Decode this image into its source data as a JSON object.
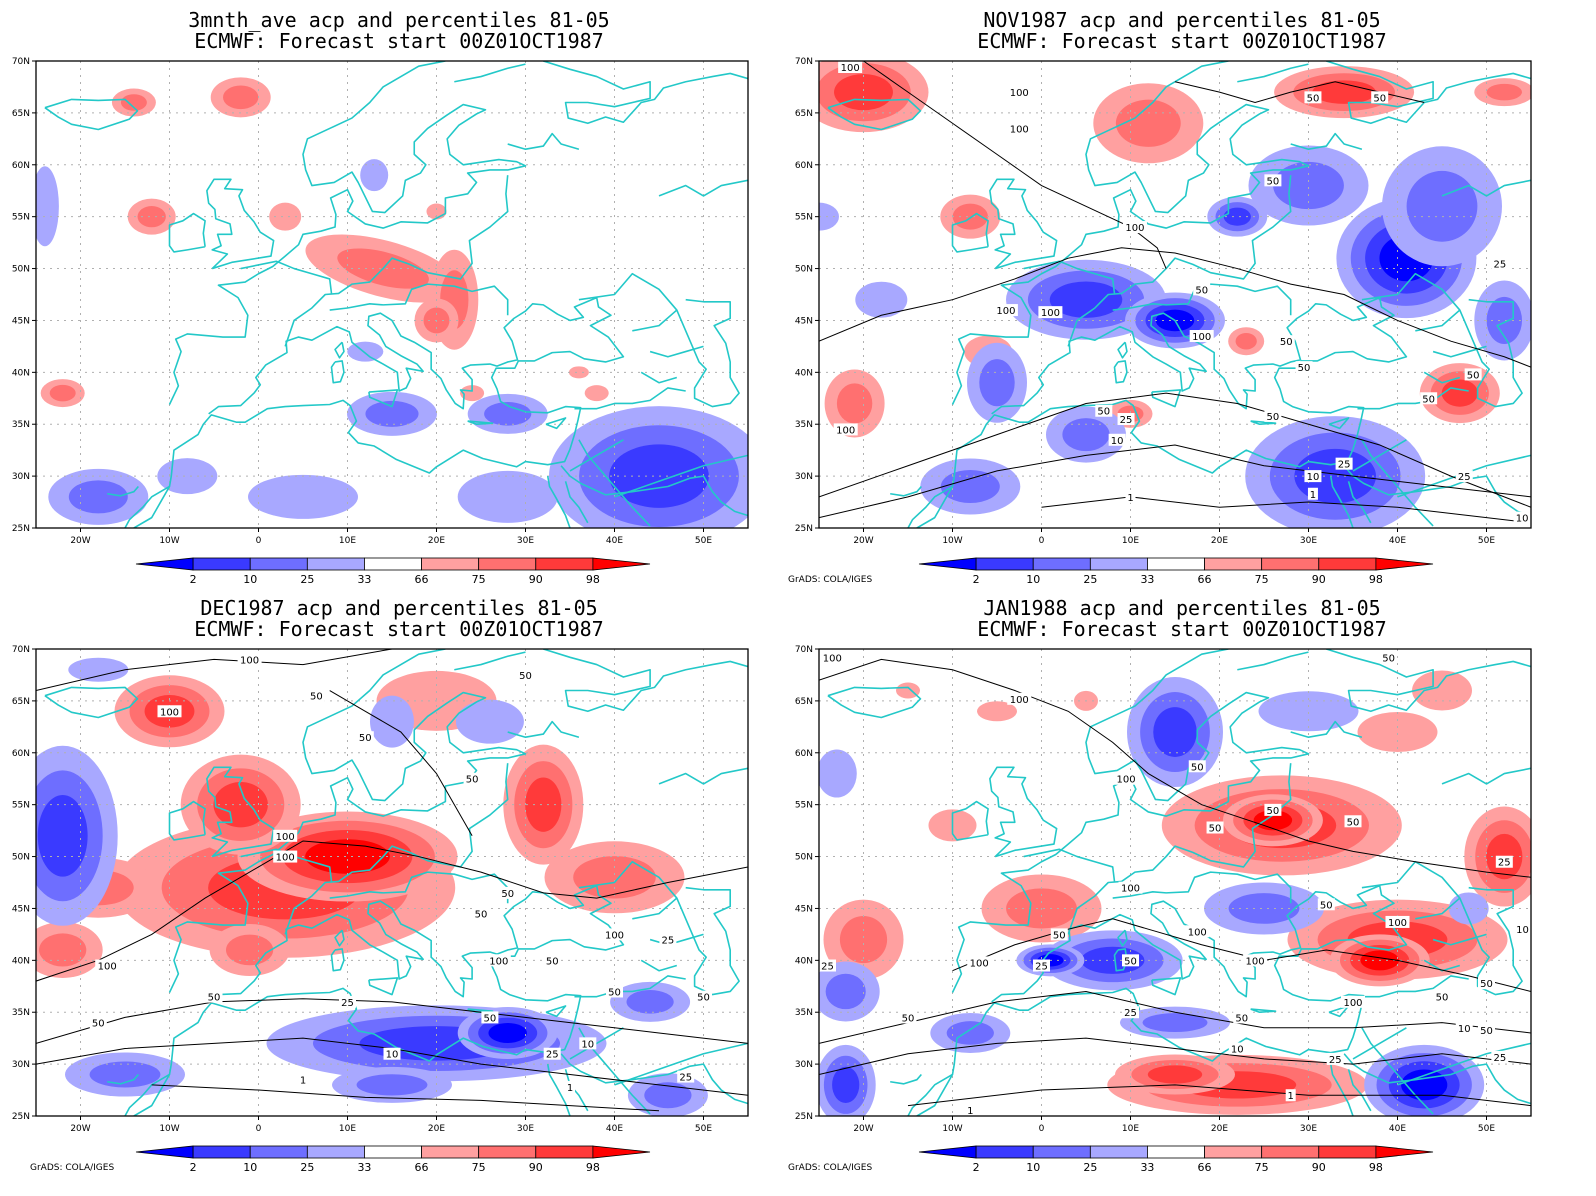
{
  "map_axes": {
    "lon_range": [
      -25,
      55
    ],
    "lat_range": [
      25,
      70
    ],
    "lon_ticks": [
      "20W",
      "10W",
      "0",
      "10E",
      "20E",
      "30E",
      "40E",
      "50E"
    ],
    "lat_ticks": [
      "70N",
      "65N",
      "60N",
      "55N",
      "50N",
      "45N",
      "40N",
      "35N",
      "30N",
      "25N"
    ]
  },
  "colorbar": {
    "labels": [
      "2",
      "10",
      "25",
      "33",
      "66",
      "75",
      "90",
      "98"
    ],
    "colors": [
      "#0000ff",
      "#3a3aff",
      "#6e6eff",
      "#a8a8ff",
      "#ffffff",
      "#ffa0a0",
      "#ff7070",
      "#ff3a3a",
      "#ff0000"
    ]
  },
  "colors": {
    "coast": "#23c8c8",
    "grid": "#b0b0b0",
    "contour": "#000000"
  },
  "credit": "GrADS: COLA/IGES",
  "panels": [
    {
      "title_line1": "3mnth_ave acp and percentiles 81-05",
      "title_line2": "ECMWF: Forecast start 00Z01OCT1987",
      "show_credit": false,
      "contours": [],
      "contour_labels": []
    },
    {
      "title_line1": "NOV1987 acp and percentiles 81-05",
      "title_line2": "ECMWF: Forecast start 00Z01OCT1987",
      "show_credit": true,
      "contours": [
        [
          [
            -25,
            43
          ],
          [
            -18,
            45.5
          ],
          [
            -10,
            47
          ],
          [
            -3,
            49
          ],
          [
            3,
            51
          ],
          [
            9,
            52
          ],
          [
            15,
            51.5
          ],
          [
            22,
            50
          ],
          [
            28,
            48.5
          ],
          [
            34,
            47.5
          ],
          [
            40,
            45
          ],
          [
            46,
            43
          ],
          [
            52,
            41.5
          ],
          [
            55,
            40.5
          ]
        ],
        [
          [
            -20,
            70
          ],
          [
            -15,
            67
          ],
          [
            -10,
            64
          ],
          [
            -5,
            61
          ],
          [
            0,
            58
          ],
          [
            5,
            56
          ],
          [
            10,
            54
          ],
          [
            13,
            52
          ],
          [
            14,
            50
          ]
        ],
        [
          [
            15,
            68
          ],
          [
            20,
            67
          ],
          [
            24,
            66
          ],
          [
            28,
            67
          ],
          [
            33,
            68
          ],
          [
            38,
            67
          ],
          [
            43,
            66
          ]
        ],
        [
          [
            -25,
            28
          ],
          [
            -15,
            31
          ],
          [
            -5,
            34
          ],
          [
            5,
            37
          ],
          [
            14,
            38
          ],
          [
            22,
            37
          ],
          [
            30,
            35
          ],
          [
            38,
            33
          ],
          [
            46,
            30
          ],
          [
            55,
            27
          ]
        ],
        [
          [
            -25,
            26
          ],
          [
            -15,
            28
          ],
          [
            -5,
            30.5
          ],
          [
            5,
            32
          ],
          [
            15,
            33
          ],
          [
            25,
            31
          ],
          [
            35,
            30
          ],
          [
            45,
            29
          ],
          [
            55,
            28
          ]
        ],
        [
          [
            0,
            27
          ],
          [
            10,
            28
          ],
          [
            20,
            27
          ],
          [
            30,
            27.5
          ],
          [
            40,
            27
          ],
          [
            50,
            26
          ],
          [
            55,
            25.5
          ]
        ]
      ],
      "contour_labels": [
        {
          "lon": -21.5,
          "lat": 69.5,
          "text": "100"
        },
        {
          "lon": -2.5,
          "lat": 67,
          "text": "100"
        },
        {
          "lon": -2.5,
          "lat": 63.5,
          "text": "100"
        },
        {
          "lon": 30.5,
          "lat": 66.5,
          "text": "50"
        },
        {
          "lon": 38,
          "lat": 66.5,
          "text": "50"
        },
        {
          "lon": 26,
          "lat": 58.5,
          "text": "50"
        },
        {
          "lon": 10.5,
          "lat": 54,
          "text": "100"
        },
        {
          "lon": 18,
          "lat": 48,
          "text": "50"
        },
        {
          "lon": -4,
          "lat": 46,
          "text": "100"
        },
        {
          "lon": 1,
          "lat": 45.8,
          "text": "100"
        },
        {
          "lon": 18,
          "lat": 43.5,
          "text": "100"
        },
        {
          "lon": 27.5,
          "lat": 43,
          "text": "50"
        },
        {
          "lon": -22,
          "lat": 34.5,
          "text": "100"
        },
        {
          "lon": 29.5,
          "lat": 40.5,
          "text": "50"
        },
        {
          "lon": 48.5,
          "lat": 39.8,
          "text": "50"
        },
        {
          "lon": 9.5,
          "lat": 35.5,
          "text": "25"
        },
        {
          "lon": 7,
          "lat": 36.3,
          "text": "50"
        },
        {
          "lon": 26,
          "lat": 35.8,
          "text": "50"
        },
        {
          "lon": 43.5,
          "lat": 37.5,
          "text": "50"
        },
        {
          "lon": 51.5,
          "lat": 50.5,
          "text": "25"
        },
        {
          "lon": 8.5,
          "lat": 33.5,
          "text": "10"
        },
        {
          "lon": 34,
          "lat": 31.2,
          "text": "25"
        },
        {
          "lon": 30.5,
          "lat": 30,
          "text": "10"
        },
        {
          "lon": 47.5,
          "lat": 30,
          "text": "25"
        },
        {
          "lon": 10,
          "lat": 28,
          "text": "1"
        },
        {
          "lon": 30.5,
          "lat": 28.3,
          "text": "1"
        },
        {
          "lon": 54,
          "lat": 26,
          "text": "10"
        }
      ]
    },
    {
      "title_line1": "DEC1987 acp and percentiles 81-05",
      "title_line2": "ECMWF: Forecast start 00Z01OCT1987",
      "show_credit": true,
      "contours": [
        [
          [
            -25,
            66
          ],
          [
            -15,
            68
          ],
          [
            -5,
            69
          ],
          [
            5,
            68.5
          ],
          [
            15,
            70
          ]
        ],
        [
          [
            -25,
            38
          ],
          [
            -18,
            40
          ],
          [
            -12,
            42.5
          ],
          [
            -6,
            46
          ],
          [
            0,
            49
          ],
          [
            5,
            51.5
          ],
          [
            12,
            51
          ],
          [
            18,
            50
          ],
          [
            25,
            48.5
          ],
          [
            32,
            46.5
          ],
          [
            38,
            46
          ],
          [
            46,
            47.5
          ],
          [
            55,
            49
          ]
        ],
        [
          [
            8,
            66
          ],
          [
            12,
            64
          ],
          [
            16,
            62
          ],
          [
            20,
            58
          ],
          [
            22,
            55
          ],
          [
            24,
            52
          ]
        ],
        [
          [
            -25,
            32
          ],
          [
            -15,
            34.5
          ],
          [
            -5,
            36
          ],
          [
            5,
            36.3
          ],
          [
            15,
            36
          ],
          [
            25,
            35
          ],
          [
            35,
            34
          ],
          [
            45,
            33
          ],
          [
            55,
            32
          ]
        ],
        [
          [
            -25,
            30
          ],
          [
            -15,
            31.5
          ],
          [
            -5,
            32
          ],
          [
            5,
            32.5
          ],
          [
            15,
            31.5
          ],
          [
            25,
            30
          ],
          [
            35,
            29
          ],
          [
            45,
            28
          ],
          [
            55,
            27
          ]
        ],
        [
          [
            -12,
            28
          ],
          [
            0,
            27.5
          ],
          [
            12,
            26.8
          ],
          [
            25,
            26.5
          ],
          [
            35,
            26
          ],
          [
            45,
            25.5
          ]
        ]
      ],
      "contour_labels": [
        {
          "lon": 30,
          "lat": 67.5,
          "text": "50"
        },
        {
          "lon": -1,
          "lat": 69,
          "text": "100"
        },
        {
          "lon": -10,
          "lat": 64,
          "text": "100"
        },
        {
          "lon": 6.5,
          "lat": 65.5,
          "text": "50"
        },
        {
          "lon": 12,
          "lat": 61.5,
          "text": "50"
        },
        {
          "lon": 24,
          "lat": 57.5,
          "text": "50"
        },
        {
          "lon": 3,
          "lat": 52,
          "text": "100"
        },
        {
          "lon": 3,
          "lat": 50,
          "text": "100"
        },
        {
          "lon": 28,
          "lat": 46.5,
          "text": "50"
        },
        {
          "lon": 25,
          "lat": 44.5,
          "text": "50"
        },
        {
          "lon": 40,
          "lat": 42.5,
          "text": "100"
        },
        {
          "lon": 46,
          "lat": 42,
          "text": "25"
        },
        {
          "lon": -17,
          "lat": 39.5,
          "text": "100"
        },
        {
          "lon": 27,
          "lat": 40,
          "text": "100"
        },
        {
          "lon": 33,
          "lat": 40,
          "text": "50"
        },
        {
          "lon": -5,
          "lat": 36.5,
          "text": "50"
        },
        {
          "lon": 10,
          "lat": 36,
          "text": "25"
        },
        {
          "lon": 26,
          "lat": 34.5,
          "text": "50"
        },
        {
          "lon": 40,
          "lat": 37,
          "text": "50"
        },
        {
          "lon": 50,
          "lat": 36.5,
          "text": "50"
        },
        {
          "lon": -18,
          "lat": 34,
          "text": "50"
        },
        {
          "lon": 15,
          "lat": 31,
          "text": "10"
        },
        {
          "lon": 37,
          "lat": 32,
          "text": "10"
        },
        {
          "lon": 33,
          "lat": 31,
          "text": "25"
        },
        {
          "lon": 5,
          "lat": 28.5,
          "text": "1"
        },
        {
          "lon": 35,
          "lat": 27.8,
          "text": "1"
        },
        {
          "lon": 48,
          "lat": 28.8,
          "text": "25"
        }
      ]
    },
    {
      "title_line1": "JAN1988 acp and percentiles 81-05",
      "title_line2": "ECMWF: Forecast start 00Z01OCT1987",
      "show_credit": true,
      "contours": [
        [
          [
            -25,
            67
          ],
          [
            -18,
            69
          ],
          [
            -10,
            68
          ],
          [
            -3,
            66
          ],
          [
            3,
            64
          ],
          [
            8,
            61
          ],
          [
            12,
            58
          ],
          [
            18,
            55
          ],
          [
            25,
            53
          ],
          [
            30,
            51.5
          ],
          [
            35,
            50.5
          ],
          [
            42,
            49.5
          ],
          [
            50,
            48.5
          ],
          [
            55,
            48
          ]
        ],
        [
          [
            -10,
            39
          ],
          [
            -3,
            41.5
          ],
          [
            3,
            43
          ],
          [
            8,
            44
          ],
          [
            12,
            43
          ],
          [
            18,
            41.5
          ],
          [
            25,
            40
          ],
          [
            32,
            41
          ],
          [
            40,
            40
          ],
          [
            48,
            38.5
          ],
          [
            55,
            37
          ]
        ],
        [
          [
            -25,
            32
          ],
          [
            -15,
            34
          ],
          [
            -5,
            36
          ],
          [
            5,
            37
          ],
          [
            15,
            35
          ],
          [
            25,
            33.5
          ],
          [
            35,
            33.5
          ],
          [
            45,
            34
          ],
          [
            55,
            33
          ]
        ],
        [
          [
            -25,
            29
          ],
          [
            -15,
            31
          ],
          [
            -5,
            32
          ],
          [
            5,
            32.5
          ],
          [
            15,
            31.5
          ],
          [
            25,
            30.5
          ],
          [
            35,
            30
          ],
          [
            45,
            31
          ],
          [
            55,
            30
          ]
        ],
        [
          [
            -15,
            26
          ],
          [
            0,
            27.5
          ],
          [
            15,
            28
          ],
          [
            30,
            27
          ],
          [
            45,
            27
          ],
          [
            55,
            26
          ]
        ]
      ],
      "contour_labels": [
        {
          "lon": -23.5,
          "lat": 69.2,
          "text": "100"
        },
        {
          "lon": 39,
          "lat": 69.2,
          "text": "50"
        },
        {
          "lon": -2.5,
          "lat": 65.2,
          "text": "100"
        },
        {
          "lon": 17.5,
          "lat": 58.7,
          "text": "50"
        },
        {
          "lon": 9.5,
          "lat": 57.5,
          "text": "100"
        },
        {
          "lon": 26,
          "lat": 54.5,
          "text": "50"
        },
        {
          "lon": 35,
          "lat": 53.4,
          "text": "50"
        },
        {
          "lon": 19.5,
          "lat": 52.8,
          "text": "50"
        },
        {
          "lon": 52,
          "lat": 49.5,
          "text": "25"
        },
        {
          "lon": 10,
          "lat": 47,
          "text": "100"
        },
        {
          "lon": 32,
          "lat": 45.4,
          "text": "50"
        },
        {
          "lon": 17.5,
          "lat": 42.8,
          "text": "100"
        },
        {
          "lon": 40,
          "lat": 43.7,
          "text": "100"
        },
        {
          "lon": 24,
          "lat": 40,
          "text": "100"
        },
        {
          "lon": 2,
          "lat": 42.5,
          "text": "50"
        },
        {
          "lon": 10,
          "lat": 40,
          "text": "50"
        },
        {
          "lon": -7,
          "lat": 39.8,
          "text": "100"
        },
        {
          "lon": -25,
          "lat": 39.5,
          "text": "25"
        },
        {
          "lon": 0,
          "lat": 39.5,
          "text": "25"
        },
        {
          "lon": 35,
          "lat": 36,
          "text": "100"
        },
        {
          "lon": 45,
          "lat": 36.5,
          "text": "50"
        },
        {
          "lon": 50,
          "lat": 37.8,
          "text": "50"
        },
        {
          "lon": -15,
          "lat": 34.5,
          "text": "50"
        },
        {
          "lon": 10,
          "lat": 35,
          "text": "25"
        },
        {
          "lon": 22.5,
          "lat": 34.5,
          "text": "50"
        },
        {
          "lon": 47.5,
          "lat": 33.5,
          "text": "10"
        },
        {
          "lon": 50,
          "lat": 33.3,
          "text": "50"
        },
        {
          "lon": 51.5,
          "lat": 30.7,
          "text": "25"
        },
        {
          "lon": 22,
          "lat": 31.5,
          "text": "10"
        },
        {
          "lon": 33,
          "lat": 30.5,
          "text": "25"
        },
        {
          "lon": 28,
          "lat": 27,
          "text": "1"
        },
        {
          "lon": -8,
          "lat": 25.5,
          "text": "1"
        },
        {
          "lon": 55,
          "lat": 43,
          "text": "10"
        }
      ]
    }
  ]
}
